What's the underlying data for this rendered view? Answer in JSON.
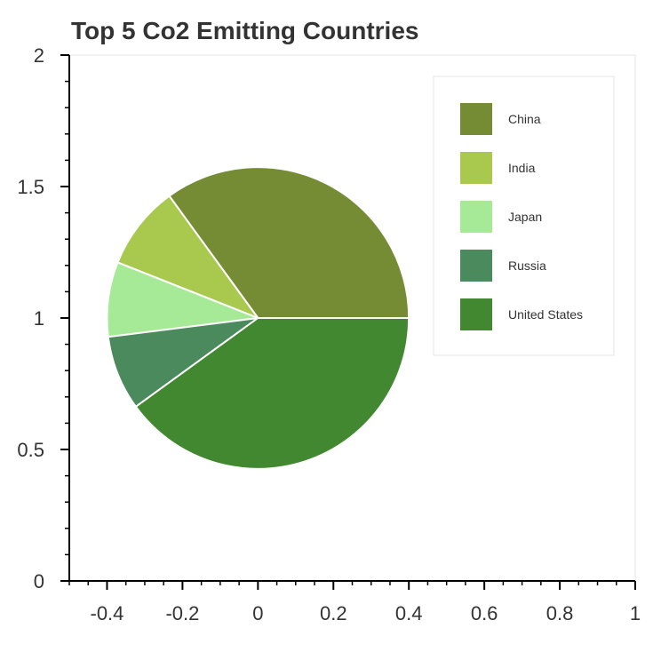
{
  "chart_data": {
    "type": "pie",
    "title": "Top 5 Co2 Emitting Countries",
    "xlim": [
      -0.5,
      1
    ],
    "ylim": [
      0,
      2
    ],
    "x_ticks": [
      -0.4,
      -0.2,
      0,
      0.2,
      0.4,
      0.6,
      0.8,
      1
    ],
    "x_tick_labels": [
      "-0.4",
      "-0.2",
      "0",
      "0.2",
      "0.4",
      "0.6",
      "0.8",
      "1"
    ],
    "y_ticks": [
      0,
      0.5,
      1,
      1.5,
      2
    ],
    "y_tick_labels": [
      "0",
      "0.5",
      "1",
      "1.5",
      "2"
    ],
    "center": [
      0,
      1
    ],
    "radius": 0.4,
    "grid": false,
    "legend_position": "top-right",
    "slices": [
      {
        "name": "China",
        "value": 0.35,
        "color": "#758c35"
      },
      {
        "name": "India",
        "value": 0.09,
        "color": "#a8c94e"
      },
      {
        "name": "Japan",
        "value": 0.08,
        "color": "#a6ea98"
      },
      {
        "name": "Russia",
        "value": 0.08,
        "color": "#4a8a5c"
      },
      {
        "name": "United States",
        "value": 0.4,
        "color": "#418830"
      }
    ]
  }
}
